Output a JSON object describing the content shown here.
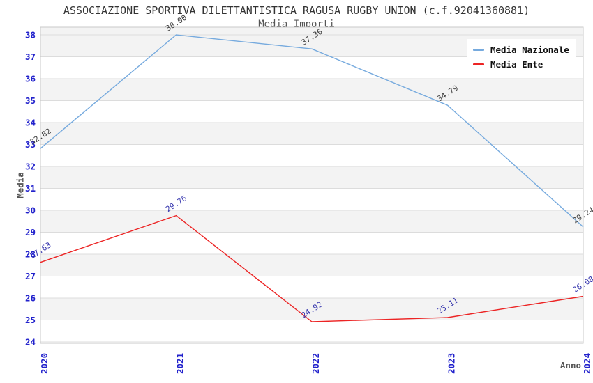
{
  "header": {
    "title": "ASSOCIAZIONE SPORTIVA DILETTANTISTICA RAGUSA RUGBY UNION (c.f.92041360881)",
    "subtitle": "Media Importi"
  },
  "chart_data": {
    "type": "line",
    "title": "ASSOCIAZIONE SPORTIVA DILETTANTISTICA RAGUSA RUGBY UNION (c.f.92041360881)",
    "subtitle": "Media Importi",
    "xlabel": "Anno",
    "ylabel": "Media",
    "categories": [
      "2020",
      "2021",
      "2022",
      "2023",
      "2024"
    ],
    "series": [
      {
        "name": "Media Nazionale",
        "color": "#76aade",
        "label_color": "#404040",
        "values": [
          32.82,
          38.0,
          37.36,
          34.79,
          29.24
        ]
      },
      {
        "name": "Media Ente",
        "color": "#ec2424",
        "label_color": "#3434ad",
        "values": [
          27.63,
          29.76,
          24.92,
          25.11,
          26.08
        ]
      }
    ],
    "ylim": [
      24,
      38.35
    ],
    "yticks": [
      38,
      37,
      36,
      35,
      34,
      33,
      32,
      31,
      30,
      29,
      28,
      27,
      26,
      25,
      24
    ],
    "grid": "horizontal-bands",
    "band_colors": [
      "#f3f3f3",
      "#ffffff"
    ],
    "gridline_color": "#dcdcdc",
    "border_color": "#c9c9c9",
    "tick_color": "#2222cc",
    "legend_position": "top-right"
  }
}
